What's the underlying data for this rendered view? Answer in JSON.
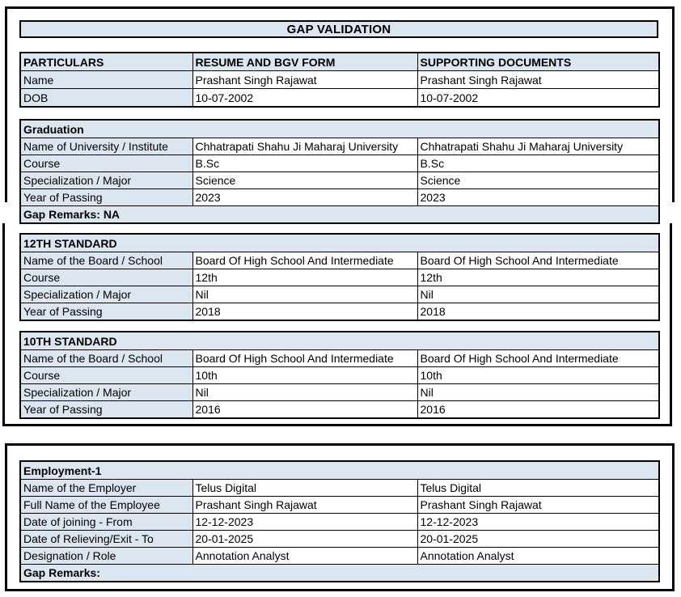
{
  "page": {
    "title": "GAP VALIDATION"
  },
  "colors": {
    "header_fill": "#dce6f1",
    "border": "#000000",
    "text": "#000000",
    "page_background": "#ffffff"
  },
  "particulars_table": {
    "headers": [
      "PARTICULARS",
      "RESUME AND BGV FORM",
      "SUPPORTING DOCUMENTS"
    ],
    "rows": [
      [
        "Name",
        "Prashant Singh Rajawat",
        "Prashant Singh Rajawat"
      ],
      [
        "DOB",
        "10-07-2002",
        "10-07-2002"
      ]
    ]
  },
  "sections": [
    {
      "id": "graduation",
      "title": "Graduation",
      "rows": [
        [
          "Name of University / Institute",
          "Chhatrapati Shahu Ji Maharaj University",
          "Chhatrapati Shahu Ji Maharaj University"
        ],
        [
          "Course",
          "B.Sc",
          "B.Sc"
        ],
        [
          "Specialization / Major",
          "Science",
          "Science"
        ],
        [
          "Year of Passing",
          "2023",
          "2023"
        ]
      ],
      "gap_remarks": "Gap Remarks: NA"
    },
    {
      "id": "12th-standard",
      "title": "12TH STANDARD",
      "rows": [
        [
          "Name of the Board / School",
          "Board Of High School And Intermediate",
          "Board Of High School And Intermediate"
        ],
        [
          "Course",
          "12th",
          "12th"
        ],
        [
          "Specialization / Major",
          "Nil",
          "Nil"
        ],
        [
          "Year of Passing",
          "2018",
          "2018"
        ]
      ],
      "gap_remarks": null
    },
    {
      "id": "10th-standard",
      "title": "10TH STANDARD",
      "rows": [
        [
          "Name of the Board / School",
          "Board Of High School And Intermediate",
          "Board Of High School And Intermediate"
        ],
        [
          "Course",
          "10th",
          "10th"
        ],
        [
          "Specialization / Major",
          "Nil",
          "Nil"
        ],
        [
          "Year of Passing",
          "2016",
          "2016"
        ]
      ],
      "gap_remarks": null
    },
    {
      "id": "employment-1",
      "title": "Employment-1",
      "rows": [
        [
          "Name of the Employer",
          "Telus Digital",
          "Telus Digital"
        ],
        [
          "Full Name of the Employee",
          "Prashant Singh Rajawat",
          "Prashant Singh Rajawat"
        ],
        [
          "Date of joining - From",
          "12-12-2023",
          "12-12-2023"
        ],
        [
          "Date of Relieving/Exit - To",
          "20-01-2025",
          "20-01-2025"
        ],
        [
          "Designation / Role",
          "Annotation Analyst",
          "Annotation Analyst"
        ]
      ],
      "gap_remarks": "Gap Remarks:"
    }
  ]
}
